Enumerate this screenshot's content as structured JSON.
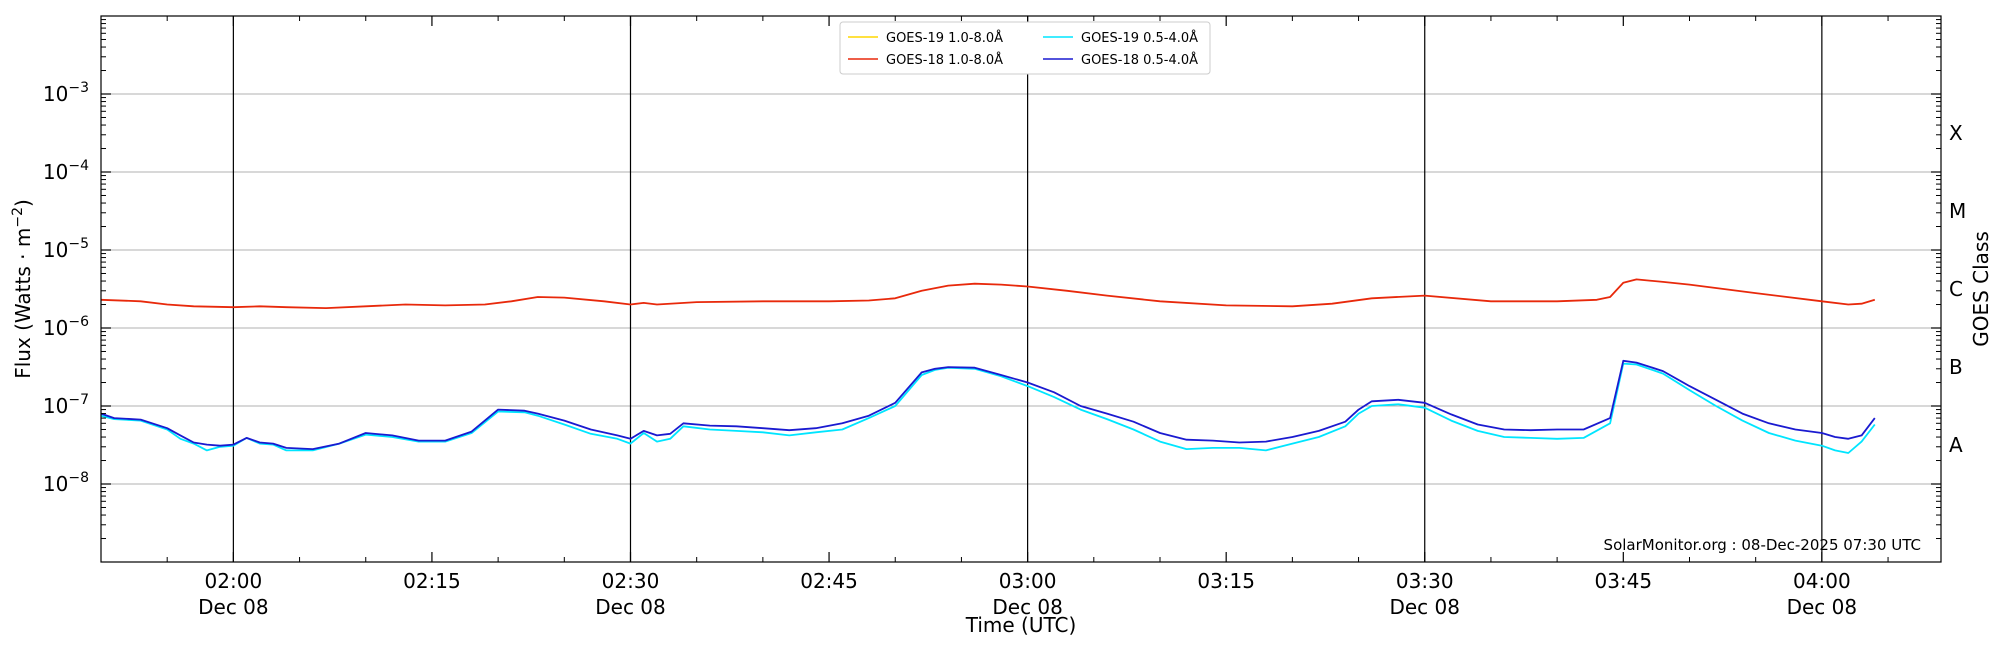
{
  "chart_data": {
    "type": "line",
    "xlabel": "Time (UTC)",
    "ylabel": "Flux (Watts · m⁻²)",
    "ylabel_parts": {
      "main": "Flux (Watts · m",
      "sup": "−2",
      "end": ")"
    },
    "right_label": "GOES Class",
    "y_scale": "log",
    "ylim": [
      1e-09,
      0.01
    ],
    "xlim": [
      "2025-12-08 01:50",
      "2025-12-08 04:09"
    ],
    "y_ticks": [
      {
        "value": 1e-08,
        "label": "10",
        "exp": "−8"
      },
      {
        "value": 1e-07,
        "label": "10",
        "exp": "−7"
      },
      {
        "value": 1e-06,
        "label": "10",
        "exp": "−6"
      },
      {
        "value": 1e-05,
        "label": "10",
        "exp": "−5"
      },
      {
        "value": 0.0001,
        "label": "10",
        "exp": "−4"
      },
      {
        "value": 0.001,
        "label": "10",
        "exp": "−3"
      }
    ],
    "x_ticks": [
      {
        "time": "02:00",
        "line1": "02:00",
        "line2": "Dec 08"
      },
      {
        "time": "02:15",
        "line1": "02:15",
        "line2": ""
      },
      {
        "time": "02:30",
        "line1": "02:30",
        "line2": "Dec 08"
      },
      {
        "time": "02:45",
        "line1": "02:45",
        "line2": ""
      },
      {
        "time": "03:00",
        "line1": "03:00",
        "line2": "Dec 08"
      },
      {
        "time": "03:15",
        "line1": "03:15",
        "line2": ""
      },
      {
        "time": "03:30",
        "line1": "03:30",
        "line2": "Dec 08"
      },
      {
        "time": "03:45",
        "line1": "03:45",
        "line2": ""
      },
      {
        "time": "04:00",
        "line1": "04:00",
        "line2": "Dec 08"
      }
    ],
    "vertical_lines": [
      "02:00",
      "02:30",
      "03:00",
      "03:30",
      "04:00"
    ],
    "goes_classes": [
      {
        "label": "A",
        "value": 3.16e-08
      },
      {
        "label": "B",
        "value": 3.16e-07
      },
      {
        "label": "C",
        "value": 3.16e-06
      },
      {
        "label": "M",
        "value": 3.16e-05
      },
      {
        "label": "X",
        "value": 0.000316
      }
    ],
    "grid": "horizontal",
    "legend_position": "top-center",
    "legend_columns": 2,
    "watermark": "SolarMonitor.org : 08-Dec-2025 07:30 UTC",
    "series": [
      {
        "name": "GOES-19 1.0-8.0Å",
        "color": "#FFD700",
        "x": [],
        "y": []
      },
      {
        "name": "GOES-18 1.0-8.0Å",
        "color": "#E8290B",
        "x": [
          "01:50",
          "01:53",
          "01:55",
          "01:57",
          "02:00",
          "02:02",
          "02:04",
          "02:07",
          "02:10",
          "02:13",
          "02:16",
          "02:19",
          "02:21",
          "02:23",
          "02:25",
          "02:28",
          "02:30",
          "02:31",
          "02:32",
          "02:35",
          "02:40",
          "02:45",
          "02:48",
          "02:50",
          "02:52",
          "02:54",
          "02:56",
          "02:58",
          "03:00",
          "03:03",
          "03:06",
          "03:10",
          "03:15",
          "03:20",
          "03:23",
          "03:26",
          "03:30",
          "03:35",
          "03:40",
          "03:43",
          "03:44",
          "03:45",
          "03:46",
          "03:48",
          "03:50",
          "03:55",
          "04:00",
          "04:02",
          "04:03",
          "04:04"
        ],
        "y": [
          2.3e-06,
          2.2e-06,
          2e-06,
          1.9e-06,
          1.85e-06,
          1.9e-06,
          1.85e-06,
          1.8e-06,
          1.9e-06,
          2e-06,
          1.95e-06,
          2e-06,
          2.2e-06,
          2.5e-06,
          2.45e-06,
          2.2e-06,
          2e-06,
          2.1e-06,
          2e-06,
          2.15e-06,
          2.2e-06,
          2.2e-06,
          2.25e-06,
          2.4e-06,
          3e-06,
          3.5e-06,
          3.7e-06,
          3.6e-06,
          3.4e-06,
          3e-06,
          2.6e-06,
          2.2e-06,
          1.95e-06,
          1.9e-06,
          2.05e-06,
          2.4e-06,
          2.6e-06,
          2.2e-06,
          2.2e-06,
          2.3e-06,
          2.5e-06,
          3.8e-06,
          4.2e-06,
          3.9e-06,
          3.6e-06,
          2.8e-06,
          2.2e-06,
          2e-06,
          2.05e-06,
          2.3e-06
        ]
      },
      {
        "name": "GOES-19 0.5-4.0Å",
        "color": "#00E5FF",
        "x": [
          "01:50",
          "01:51",
          "01:53",
          "01:55",
          "01:56",
          "01:57",
          "01:58",
          "01:59",
          "02:00",
          "02:01",
          "02:02",
          "02:03",
          "02:04",
          "02:06",
          "02:08",
          "02:10",
          "02:12",
          "02:14",
          "02:16",
          "02:18",
          "02:20",
          "02:22",
          "02:23",
          "02:25",
          "02:27",
          "02:29",
          "02:30",
          "02:31",
          "02:32",
          "02:33",
          "02:34",
          "02:36",
          "02:38",
          "02:40",
          "02:42",
          "02:44",
          "02:46",
          "02:48",
          "02:50",
          "02:52",
          "02:53",
          "02:54",
          "02:56",
          "02:58",
          "03:00",
          "03:02",
          "03:04",
          "03:06",
          "03:08",
          "03:10",
          "03:12",
          "03:14",
          "03:16",
          "03:18",
          "03:20",
          "03:22",
          "03:24",
          "03:25",
          "03:26",
          "03:28",
          "03:30",
          "03:32",
          "03:34",
          "03:36",
          "03:38",
          "03:40",
          "03:42",
          "03:44",
          "03:45",
          "03:46",
          "03:48",
          "03:50",
          "03:52",
          "03:54",
          "03:56",
          "03:58",
          "04:00",
          "04:01",
          "04:02",
          "04:03",
          "04:04"
        ],
        "y": [
          7.5e-08,
          6.8e-08,
          6.5e-08,
          5e-08,
          3.8e-08,
          3.3e-08,
          2.7e-08,
          3e-08,
          3.1e-08,
          3.9e-08,
          3.3e-08,
          3.2e-08,
          2.7e-08,
          2.7e-08,
          3.3e-08,
          4.3e-08,
          4e-08,
          3.5e-08,
          3.5e-08,
          4.5e-08,
          8.5e-08,
          8.3e-08,
          7.5e-08,
          5.8e-08,
          4.4e-08,
          3.8e-08,
          3.3e-08,
          4.5e-08,
          3.5e-08,
          3.8e-08,
          5.5e-08,
          5e-08,
          4.8e-08,
          4.6e-08,
          4.2e-08,
          4.6e-08,
          5e-08,
          7e-08,
          1e-07,
          2.5e-07,
          2.9e-07,
          3.1e-07,
          3e-07,
          2.4e-07,
          1.8e-07,
          1.3e-07,
          9e-08,
          6.8e-08,
          5e-08,
          3.5e-08,
          2.8e-08,
          2.9e-08,
          2.9e-08,
          2.7e-08,
          3.3e-08,
          4e-08,
          5.5e-08,
          8e-08,
          1e-07,
          1.05e-07,
          9.5e-08,
          6.5e-08,
          4.8e-08,
          4e-08,
          3.9e-08,
          3.8e-08,
          3.9e-08,
          6e-08,
          3.5e-07,
          3.4e-07,
          2.6e-07,
          1.6e-07,
          1e-07,
          6.5e-08,
          4.5e-08,
          3.6e-08,
          3.1e-08,
          2.7e-08,
          2.5e-08,
          3.5e-08,
          5.8e-08
        ]
      },
      {
        "name": "GOES-18 0.5-4.0Å",
        "color": "#1A1AD0",
        "x": [
          "01:50",
          "01:51",
          "01:53",
          "01:55",
          "01:56",
          "01:57",
          "01:58",
          "01:59",
          "02:00",
          "02:01",
          "02:02",
          "02:03",
          "02:04",
          "02:06",
          "02:08",
          "02:10",
          "02:12",
          "02:14",
          "02:16",
          "02:18",
          "02:20",
          "02:22",
          "02:23",
          "02:25",
          "02:27",
          "02:29",
          "02:30",
          "02:31",
          "02:32",
          "02:33",
          "02:34",
          "02:36",
          "02:38",
          "02:40",
          "02:42",
          "02:44",
          "02:46",
          "02:48",
          "02:50",
          "02:52",
          "02:53",
          "02:54",
          "02:56",
          "02:58",
          "03:00",
          "03:02",
          "03:04",
          "03:06",
          "03:08",
          "03:10",
          "03:12",
          "03:14",
          "03:16",
          "03:18",
          "03:20",
          "03:22",
          "03:24",
          "03:25",
          "03:26",
          "03:28",
          "03:30",
          "03:32",
          "03:34",
          "03:36",
          "03:38",
          "03:40",
          "03:42",
          "03:44",
          "03:45",
          "03:46",
          "03:48",
          "03:50",
          "03:52",
          "03:54",
          "03:56",
          "03:58",
          "04:00",
          "04:01",
          "04:02",
          "04:03",
          "04:04"
        ],
        "y": [
          8e-08,
          7e-08,
          6.7e-08,
          5.2e-08,
          4.2e-08,
          3.4e-08,
          3.2e-08,
          3.1e-08,
          3.2e-08,
          3.9e-08,
          3.4e-08,
          3.3e-08,
          2.9e-08,
          2.8e-08,
          3.3e-08,
          4.5e-08,
          4.2e-08,
          3.6e-08,
          3.6e-08,
          4.7e-08,
          9e-08,
          8.7e-08,
          8e-08,
          6.5e-08,
          5e-08,
          4.2e-08,
          3.8e-08,
          4.8e-08,
          4.2e-08,
          4.4e-08,
          6e-08,
          5.6e-08,
          5.5e-08,
          5.2e-08,
          4.9e-08,
          5.2e-08,
          6e-08,
          7.5e-08,
          1.1e-07,
          2.7e-07,
          3e-07,
          3.15e-07,
          3.1e-07,
          2.5e-07,
          2e-07,
          1.5e-07,
          1e-07,
          8e-08,
          6.3e-08,
          4.5e-08,
          3.7e-08,
          3.6e-08,
          3.4e-08,
          3.5e-08,
          4e-08,
          4.8e-08,
          6.3e-08,
          9e-08,
          1.15e-07,
          1.2e-07,
          1.1e-07,
          7.8e-08,
          5.8e-08,
          5e-08,
          4.9e-08,
          5e-08,
          5e-08,
          7e-08,
          3.8e-07,
          3.6e-07,
          2.8e-07,
          1.8e-07,
          1.2e-07,
          8e-08,
          6e-08,
          5e-08,
          4.5e-08,
          4e-08,
          3.8e-08,
          4.2e-08,
          7e-08
        ]
      }
    ]
  }
}
